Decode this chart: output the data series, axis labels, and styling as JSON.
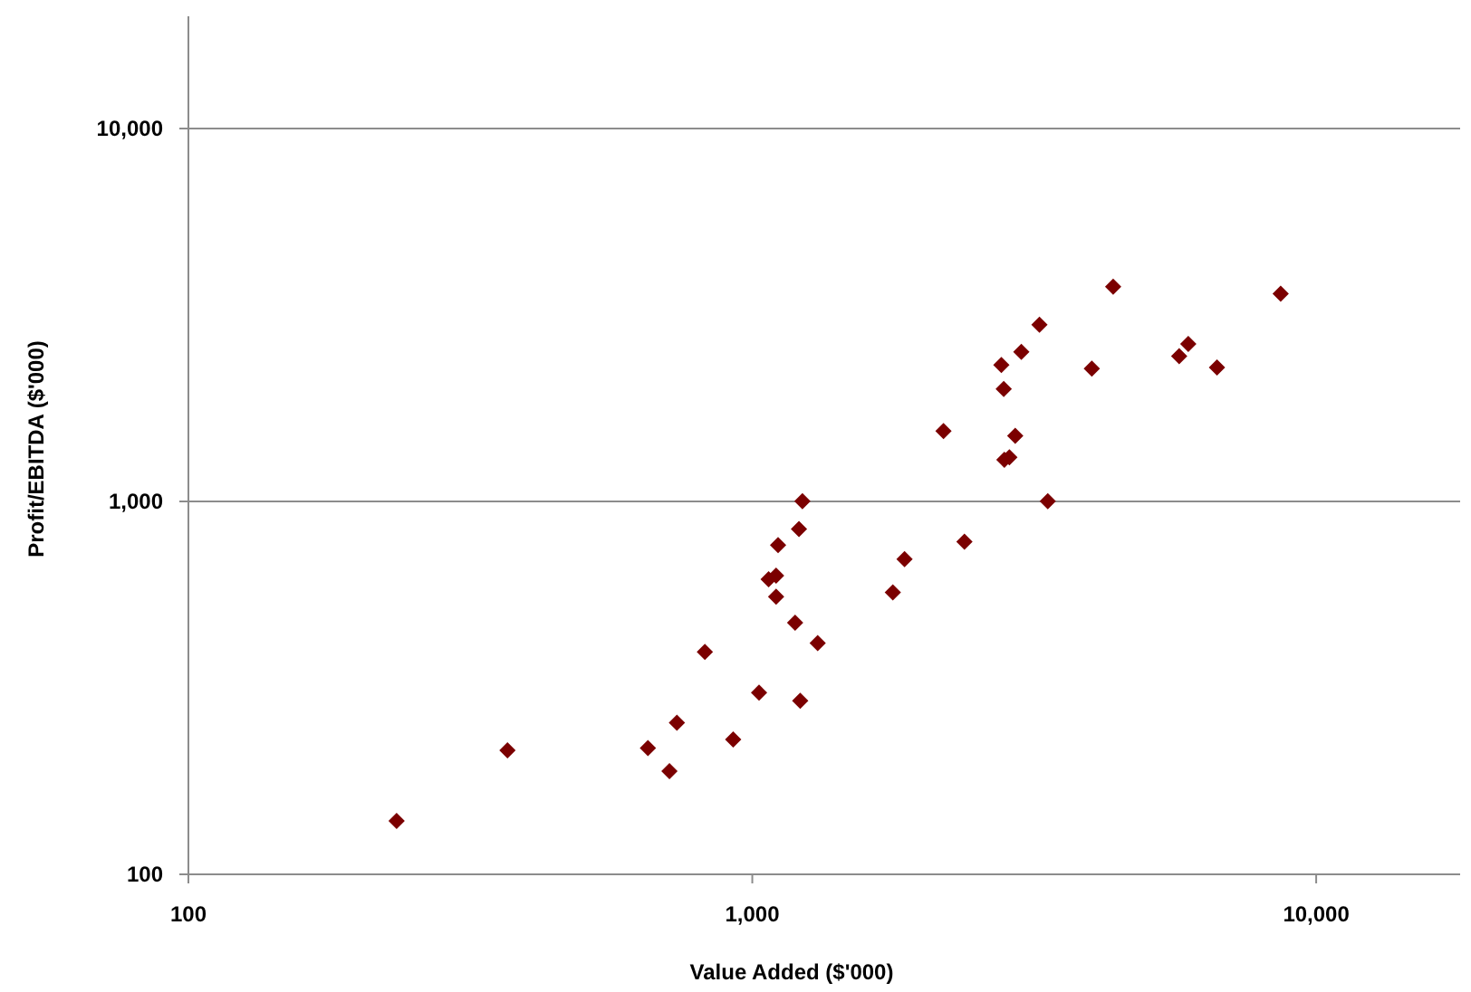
{
  "chart_data": {
    "type": "scatter",
    "xlabel": "Value Added ($'000)",
    "ylabel": "Profit/EBITDA ($'000)",
    "log": "xy",
    "grid": "y",
    "marker": "diamond",
    "xlim": [
      100,
      18000
    ],
    "xticks": [
      {
        "value": 100,
        "label": "100"
      },
      {
        "value": 1000,
        "label": "1,000"
      },
      {
        "value": 10000,
        "label": "10,000"
      }
    ],
    "ylim": [
      100,
      20000
    ],
    "yticks": [
      {
        "value": 100,
        "label": "100"
      },
      {
        "value": 1000,
        "label": "1,000"
      },
      {
        "value": 10000,
        "label": "10,000"
      }
    ],
    "series": [
      {
        "color": "#7b0000",
        "x": [
          234,
          368,
          653,
          713,
          735,
          824,
          925,
          1028,
          1216,
          1306,
          1191,
          1102,
          1069,
          1102,
          1111,
          1210,
          1227,
          1775,
          1862,
          2378,
          2183,
          3342,
          2799,
          2857,
          2926,
          2792,
          2765,
          3000,
          3230,
          4000,
          4365,
          5715,
          5932,
          6670,
          8650
        ],
        "values": [
          139,
          215,
          218,
          189,
          255,
          395,
          230,
          307,
          292,
          417,
          473,
          555,
          618,
          632,
          764,
          843,
          1002,
          570,
          700,
          780,
          1545,
          1002,
          1294,
          1313,
          1500,
          2004,
          2321,
          2519,
          2978,
          2270,
          3767,
          2452,
          2645,
          2286,
          3606
        ]
      }
    ]
  }
}
